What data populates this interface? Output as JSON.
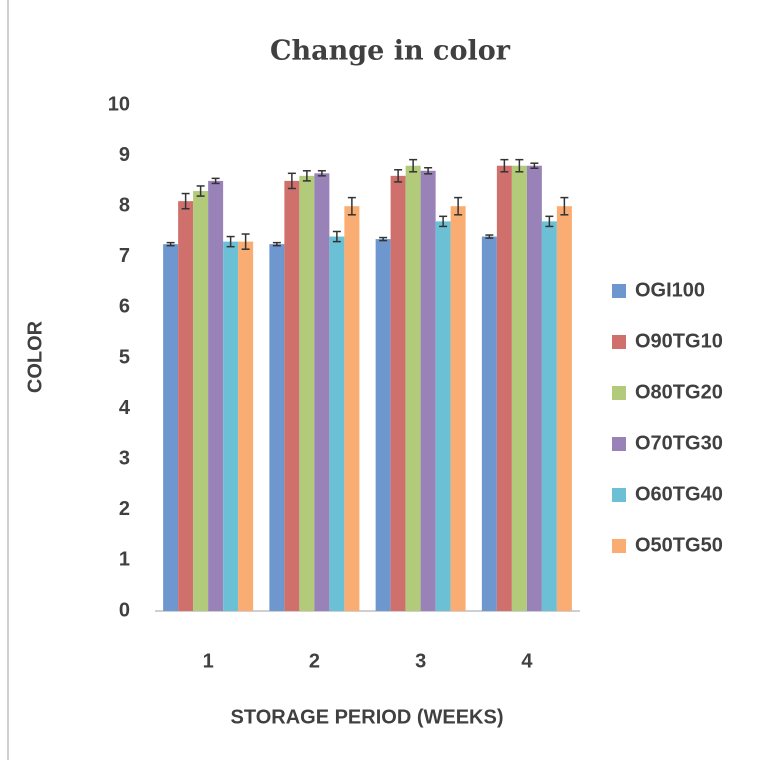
{
  "chart_data": {
    "type": "bar",
    "title": "Change in color",
    "x_label": "STORAGE PERIOD (WEEKS)",
    "y_label": "COLOR",
    "categories": [
      "1",
      "2",
      "3",
      "4"
    ],
    "series": [
      {
        "name": "OGI100",
        "color": "#6f97cf",
        "values": [
          7.25,
          7.25,
          7.35,
          7.4
        ],
        "errors": [
          0.03,
          0.03,
          0.03,
          0.03
        ]
      },
      {
        "name": "O90TG10",
        "color": "#d0706d",
        "values": [
          8.1,
          8.5,
          8.6,
          8.8
        ],
        "errors": [
          0.15,
          0.15,
          0.12,
          0.12
        ]
      },
      {
        "name": "O80TG20",
        "color": "#b2cb7b",
        "values": [
          8.3,
          8.6,
          8.8,
          8.8
        ],
        "errors": [
          0.1,
          0.1,
          0.12,
          0.12
        ]
      },
      {
        "name": "O70TG30",
        "color": "#9882b8",
        "values": [
          8.5,
          8.65,
          8.7,
          8.8
        ],
        "errors": [
          0.05,
          0.05,
          0.06,
          0.05
        ]
      },
      {
        "name": "O60TG40",
        "color": "#6cc0d6",
        "values": [
          7.3,
          7.4,
          7.7,
          7.7
        ],
        "errors": [
          0.1,
          0.1,
          0.1,
          0.1
        ]
      },
      {
        "name": "O50TG50",
        "color": "#f9ad72",
        "values": [
          7.3,
          8.0,
          8.0,
          8.0
        ],
        "errors": [
          0.15,
          0.17,
          0.17,
          0.17
        ]
      }
    ],
    "ylim": [
      0,
      10
    ],
    "yticks": [
      0,
      1,
      2,
      3,
      4,
      5,
      6,
      7,
      8,
      9,
      10
    ],
    "grid": false,
    "legend": "right"
  }
}
